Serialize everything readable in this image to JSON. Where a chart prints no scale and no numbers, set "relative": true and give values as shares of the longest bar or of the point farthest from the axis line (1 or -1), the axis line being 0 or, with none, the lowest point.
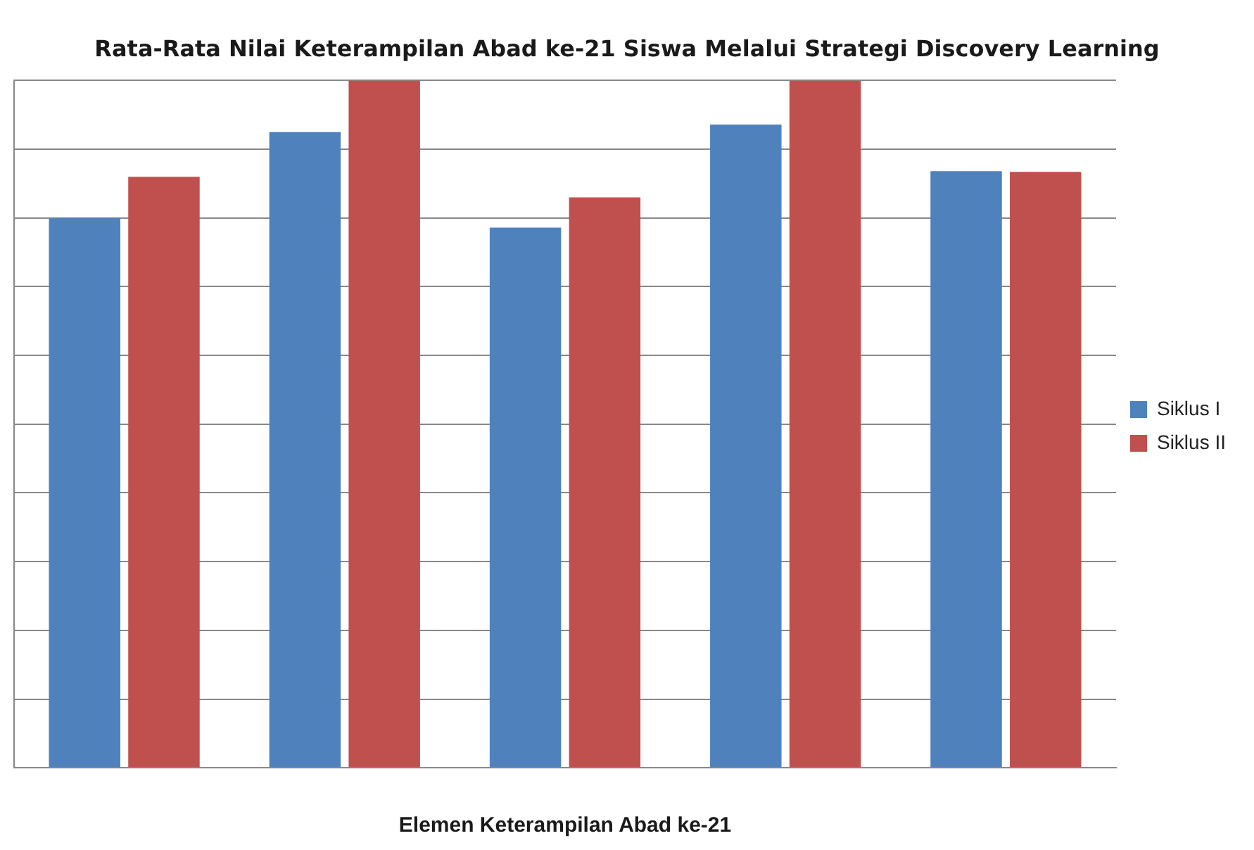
{
  "chart_data": {
    "type": "bar",
    "title": "Rata-Rata Nilai Keterampilan Abad ke-21 Siswa Melalui Strategi Discovery Learning",
    "xlabel": "Elemen Keterampilan Abad ke-21",
    "categories": [
      null,
      null,
      null,
      null,
      null
    ],
    "relative": true,
    "series": [
      {
        "name": "Siklus I",
        "color": "#4f81bd",
        "values": [
          0.8,
          0.925,
          0.786,
          0.936,
          0.868
        ]
      },
      {
        "name": "Siklus II",
        "color": "#c0504d",
        "values": [
          0.86,
          1,
          0.83,
          1,
          0.867
        ]
      }
    ],
    "grid": "y",
    "legend": "right"
  }
}
